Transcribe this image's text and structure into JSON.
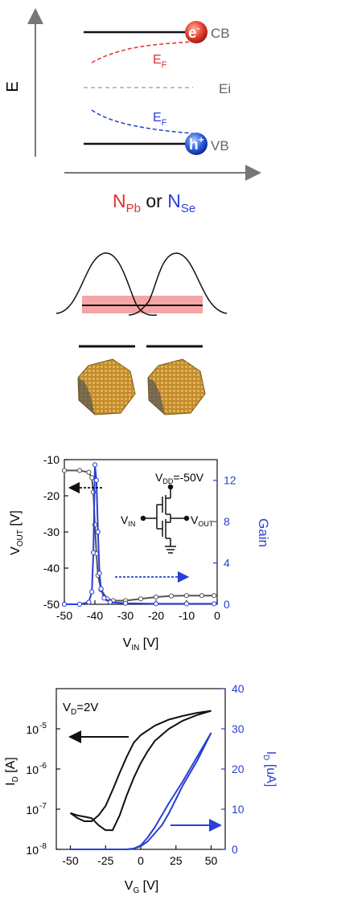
{
  "band_diagram": {
    "axis_label": "E",
    "cb_label": "CB",
    "vb_label": "VB",
    "ei_label": "Ei",
    "ef_label_top": "E",
    "ef_label_bottom": "E",
    "ef_subscript": "F",
    "electron_label": "e",
    "hole_label": "h",
    "caption_part1": "N",
    "caption_sub1": "Pb",
    "caption_or": " or ",
    "caption_part2": "N",
    "caption_sub2": "Se",
    "colors": {
      "n_type": "#e03030",
      "p_type": "#2a3fd6",
      "ei": "#aaaaaa"
    }
  },
  "overlap_diagram": {
    "band_color": "#f4a5a5"
  },
  "chart_data": [
    {
      "type": "line",
      "title": "",
      "xlabel": "V",
      "xlabel_sub": "IN",
      "xlabel_unit": " [V]",
      "ylabel": "V",
      "ylabel_sub": "OUT",
      "ylabel_unit": " [V]",
      "y2label": "Gain",
      "xlim": [
        -50,
        0
      ],
      "ylim": [
        -50,
        -10
      ],
      "y2lim": [
        0,
        14
      ],
      "xticks": [
        "-50",
        "-40",
        "-30",
        "-20",
        "-10",
        "0"
      ],
      "yticks": [
        "-10",
        "-20",
        "-30",
        "-40",
        "-50"
      ],
      "y2ticks": [
        "12",
        "8",
        "4",
        "0"
      ],
      "annotation": "V",
      "annotation_sub": "DD",
      "annotation_value": "=-50V",
      "vin_label": "V",
      "vin_sub": "IN",
      "vout_label": "V",
      "vout_sub": "OUT",
      "series": [
        {
          "axis": "left",
          "color": "#555555",
          "x": [
            -50,
            -45,
            -42,
            -41,
            -40.5,
            -40,
            -39.5,
            -39,
            -38,
            -36,
            -34,
            -30,
            -25,
            -20,
            -15,
            -10,
            -5,
            -1
          ],
          "y": [
            -13,
            -13,
            -13.5,
            -15,
            -19,
            -28,
            -36,
            -42,
            -46,
            -48.5,
            -49,
            -49,
            -48.5,
            -48,
            -47.7,
            -47.6,
            -47.6,
            -47.6
          ]
        },
        {
          "axis": "right",
          "color": "#2a3fd6",
          "x": [
            -50,
            -45,
            -42,
            -41,
            -40.5,
            -40,
            -39.5,
            -39,
            -38.5,
            -38,
            -37,
            -35,
            -30,
            -20,
            -10,
            -1
          ],
          "y": [
            0,
            0,
            0.2,
            1.2,
            5,
            13.5,
            12,
            7,
            3,
            1.5,
            0.6,
            0.2,
            0.1,
            0.05,
            0.05,
            0.05
          ]
        }
      ]
    },
    {
      "type": "line",
      "title": "",
      "xlabel": "V",
      "xlabel_sub": "G",
      "xlabel_unit": " [V]",
      "ylabel": "I",
      "ylabel_sub": "D",
      "ylabel_unit": " [A]",
      "y2label": "I",
      "y2label_sub": "D",
      "y2label_unit": " [uA]",
      "yscale": "log",
      "xlim": [
        -60,
        60
      ],
      "ylim": [
        1e-08,
        0.0001
      ],
      "y2lim": [
        0,
        40
      ],
      "xticks": [
        "-50",
        "-25",
        "0",
        "25",
        "50"
      ],
      "yticks": [
        "10",
        "10",
        "10",
        "10"
      ],
      "ytick_exponents": [
        "-5",
        "-6",
        "-7",
        "-8"
      ],
      "y2ticks": [
        "40",
        "30",
        "20",
        "10",
        "0"
      ],
      "annotation": "V",
      "annotation_sub": "D",
      "annotation_value": "=2V",
      "series": [
        {
          "axis": "left",
          "color": "#111111",
          "x": [
            -50,
            -45,
            -40,
            -35,
            -30,
            -25,
            -20,
            -15,
            -10,
            -5,
            0,
            10,
            20,
            30,
            40,
            50
          ],
          "y": [
            8e-08,
            6e-08,
            5e-08,
            5e-08,
            7e-08,
            1.2e-07,
            3e-07,
            8e-07,
            2e-06,
            4.5e-06,
            7e-06,
            1.2e-05,
            1.7e-05,
            2.1e-05,
            2.5e-05,
            2.8e-05
          ]
        },
        {
          "axis": "left",
          "color": "#111111",
          "x": [
            50,
            40,
            30,
            20,
            10,
            5,
            0,
            -5,
            -10,
            -15,
            -20,
            -25,
            -30,
            -35,
            -40,
            -45,
            -50
          ],
          "y": [
            2.8e-05,
            2.2e-05,
            1.6e-05,
            1e-05,
            5e-06,
            2.8e-06,
            1.4e-06,
            6e-07,
            2.2e-07,
            7e-08,
            3e-08,
            3e-08,
            4e-08,
            6e-08,
            6.5e-08,
            7e-08,
            8e-08
          ]
        },
        {
          "axis": "right",
          "color": "#2a3fd6",
          "x": [
            -50,
            -25,
            -10,
            -5,
            0,
            5,
            10,
            15,
            20,
            30,
            40,
            50
          ],
          "y": [
            0,
            0,
            0,
            0.2,
            0.8,
            2,
            4,
            6,
            9,
            16,
            22,
            29
          ]
        },
        {
          "axis": "right",
          "color": "#2a3fd6",
          "x": [
            50,
            40,
            30,
            20,
            15,
            10,
            5,
            0,
            -5,
            -10,
            -20,
            -50
          ],
          "y": [
            29,
            23,
            17,
            11.5,
            8.5,
            5.5,
            3,
            1,
            0.2,
            0,
            0,
            0
          ]
        }
      ]
    }
  ]
}
